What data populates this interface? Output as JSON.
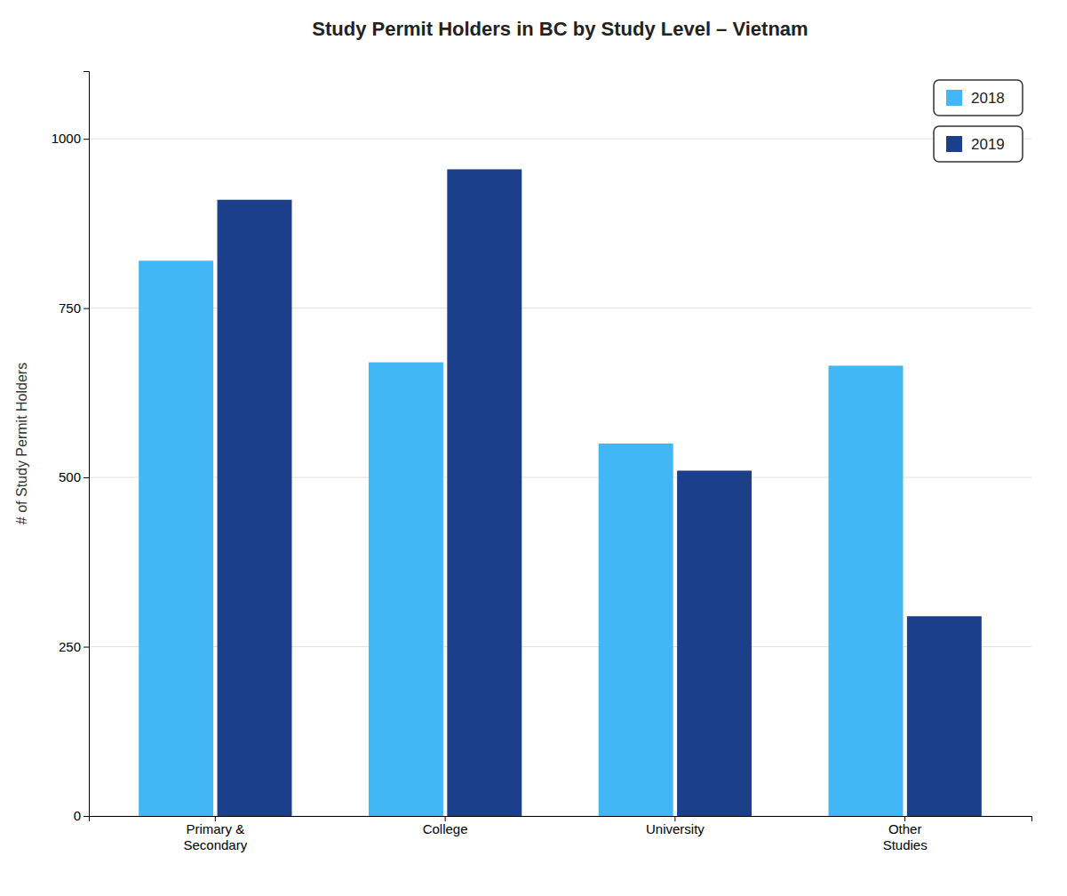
{
  "chart_data": {
    "type": "bar",
    "title": "Study Permit Holders in BC by Study Level – Vietnam",
    "ylabel": "# of Study Permit Holders",
    "categories": [
      "Primary &\nSecondary",
      "College",
      "University",
      "Other\nStudies"
    ],
    "series": [
      {
        "name": "2018",
        "color": "#41B8F5",
        "values": [
          820,
          670,
          550,
          665
        ]
      },
      {
        "name": "2019",
        "color": "#1B3F8A",
        "values": [
          910,
          955,
          510,
          295
        ]
      }
    ],
    "ylim": [
      0,
      1100
    ],
    "yticks": [
      0,
      250,
      500,
      750,
      1000
    ],
    "grid": true,
    "legend": "upper right"
  }
}
